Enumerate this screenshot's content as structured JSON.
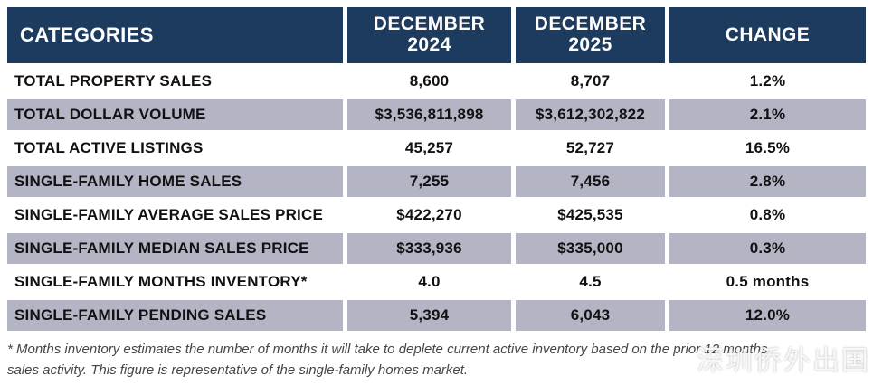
{
  "colors": {
    "header_bg": "#1d3a5f",
    "header_text": "#ffffff",
    "row_alt_bg": "#b4b5c4",
    "body_text": "#111111",
    "footnote_text": "#454545"
  },
  "table": {
    "columns": [
      {
        "label": "CATEGORIES"
      },
      {
        "month": "DECEMBER",
        "year": "2024"
      },
      {
        "month": "DECEMBER",
        "year": "2025"
      },
      {
        "label": "CHANGE"
      }
    ],
    "rows": [
      {
        "label": "TOTAL PROPERTY SALES",
        "dec_2024": "8,600",
        "dec_2025": "8,707",
        "change": "1.2%"
      },
      {
        "label": "TOTAL DOLLAR VOLUME",
        "dec_2024": "$3,536,811,898",
        "dec_2025": "$3,612,302,822",
        "change": "2.1%"
      },
      {
        "label": "TOTAL ACTIVE LISTINGS",
        "dec_2024": "45,257",
        "dec_2025": "52,727",
        "change": "16.5%"
      },
      {
        "label": "SINGLE-FAMILY HOME SALES",
        "dec_2024": "7,255",
        "dec_2025": "7,456",
        "change": "2.8%"
      },
      {
        "label": "SINGLE-FAMILY AVERAGE SALES PRICE",
        "dec_2024": "$422,270",
        "dec_2025": "$425,535",
        "change": "0.8%"
      },
      {
        "label": "SINGLE-FAMILY MEDIAN SALES PRICE",
        "dec_2024": "$333,936",
        "dec_2025": "$335,000",
        "change": "0.3%"
      },
      {
        "label": "SINGLE-FAMILY MONTHS INVENTORY*",
        "dec_2024": "4.0",
        "dec_2025": "4.5",
        "change": "0.5 months"
      },
      {
        "label": "SINGLE-FAMILY PENDING SALES",
        "dec_2024": "5,394",
        "dec_2025": "6,043",
        "change": "12.0%"
      }
    ]
  },
  "footnote": {
    "lines": [
      "* Months inventory estimates the number of months it will take to deplete current active inventory based on the prior 12 months",
      "sales activity. This figure is representative of the single-family homes market."
    ]
  },
  "watermark": "深圳侨外出国",
  "chart_data": {
    "type": "table",
    "columns": [
      "CATEGORIES",
      "DECEMBER 2024",
      "DECEMBER 2025",
      "CHANGE"
    ],
    "rows": [
      [
        "TOTAL PROPERTY SALES",
        "8,600",
        "8,707",
        "1.2%"
      ],
      [
        "TOTAL DOLLAR VOLUME",
        "$3,536,811,898",
        "$3,612,302,822",
        "2.1%"
      ],
      [
        "TOTAL ACTIVE LISTINGS",
        "45,257",
        "52,727",
        "16.5%"
      ],
      [
        "SINGLE-FAMILY HOME SALES",
        "7,255",
        "7,456",
        "2.8%"
      ],
      [
        "SINGLE-FAMILY AVERAGE SALES PRICE",
        "$422,270",
        "$425,535",
        "0.8%"
      ],
      [
        "SINGLE-FAMILY MEDIAN SALES PRICE",
        "$333,936",
        "$335,000",
        "0.3%"
      ],
      [
        "SINGLE-FAMILY MONTHS INVENTORY*",
        "4.0",
        "4.5",
        "0.5 months"
      ],
      [
        "SINGLE-FAMILY PENDING SALES",
        "5,394",
        "6,043",
        "12.0%"
      ]
    ]
  }
}
